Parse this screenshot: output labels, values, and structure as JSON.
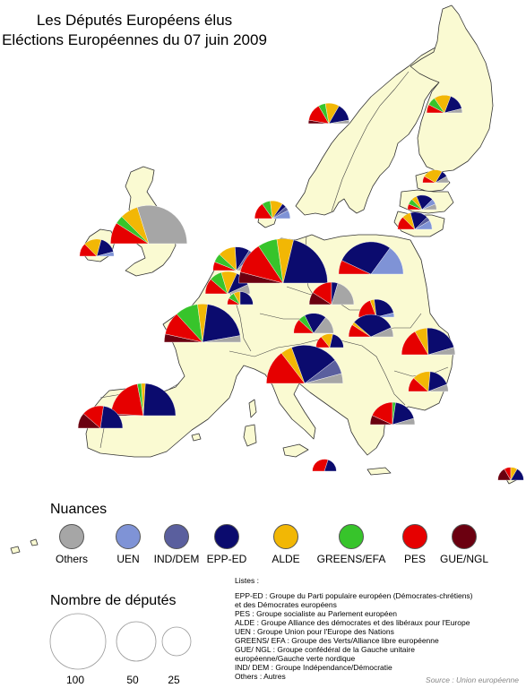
{
  "title_line1": "Les Députés Européens élus",
  "title_line2": "Eléctions Européennes du 07 juin 2009",
  "legend": {
    "heading": "Nuances",
    "items": [
      {
        "key": "others",
        "label": "Others",
        "color": "#a6a6a6"
      },
      {
        "key": "uen",
        "label": "UEN",
        "color": "#7f93d6"
      },
      {
        "key": "ind-dem",
        "label": "IND/DEM",
        "color": "#5a5f9e"
      },
      {
        "key": "epp-ed",
        "label": "EPP-ED",
        "color": "#0b0b6e"
      },
      {
        "key": "alde",
        "label": "ALDE",
        "color": "#f2b705"
      },
      {
        "key": "greens-efa",
        "label": "GREENS/EFA",
        "color": "#37c42b"
      },
      {
        "key": "pes",
        "label": "PES",
        "color": "#e60000"
      },
      {
        "key": "gue-ngl",
        "label": "GUE/NGL",
        "color": "#6b0010"
      }
    ]
  },
  "size_legend": {
    "heading": "Nombre de députés",
    "items": [
      {
        "label": "100",
        "seats": 100
      },
      {
        "label": "50",
        "seats": 50
      },
      {
        "label": "25",
        "seats": 25
      }
    ]
  },
  "lists": {
    "title": "Listes :",
    "lines": [
      "EPP-ED : Groupe du Parti populaire européen (Démocrates-chrétiens)",
      "et des Démocrates européens",
      "PES : Groupe socialiste au Parlement européen",
      "ALDE : Groupe Alliance des démocrates et des libéraux pour l'Europe",
      "UEN : Groupe Union pour l'Europe des Nations",
      "GREENS/ EFA : Groupe des Verts/Alliance libre européenne",
      "GUE/ NGL : Groupe confédéral de la Gauche unitaire",
      "européenne/Gauche verte nordique",
      "IND/ DEM : Groupe Indépendance/Démocratie",
      "Others : Autres"
    ]
  },
  "source": "Source : Union européenne",
  "countries": [
    {
      "id": "finland",
      "seats": 13,
      "shares": {
        "epp-ed": 4,
        "alde": 4,
        "greens-efa": 2,
        "pes": 2,
        "others": 1
      }
    },
    {
      "id": "sweden",
      "seats": 18,
      "shares": {
        "epp-ed": 5,
        "alde": 4,
        "greens-efa": 2,
        "pes": 5,
        "gue-ngl": 1,
        "others": 1
      }
    },
    {
      "id": "estonia",
      "seats": 6,
      "shares": {
        "epp-ed": 1,
        "alde": 3,
        "pes": 1,
        "others": 1
      }
    },
    {
      "id": "latvia",
      "seats": 8,
      "shares": {
        "epp-ed": 3,
        "uen": 1,
        "alde": 1,
        "pes": 1,
        "greens-efa": 1,
        "others": 1
      }
    },
    {
      "id": "lithuania",
      "seats": 12,
      "shares": {
        "epp-ed": 4,
        "pes": 3,
        "alde": 2,
        "uen": 2,
        "ind-dem": 1
      }
    },
    {
      "id": "denmark",
      "seats": 13,
      "shares": {
        "epp-ed": 1,
        "pes": 4,
        "alde": 3,
        "greens-efa": 2,
        "uen": 2,
        "ind-dem": 1
      }
    },
    {
      "id": "ireland",
      "seats": 12,
      "shares": {
        "epp-ed": 4,
        "alde": 4,
        "pes": 3,
        "uen": 1
      }
    },
    {
      "id": "uk",
      "seats": 72,
      "shares": {
        "pes": 13,
        "greens-efa": 5,
        "alde": 11,
        "epp-ed": 0,
        "others": 43
      }
    },
    {
      "id": "netherlands",
      "seats": 25,
      "shares": {
        "epp-ed": 5,
        "pes": 3,
        "alde": 6,
        "greens-efa": 3,
        "ind-dem": 2,
        "others": 6
      }
    },
    {
      "id": "belgium",
      "seats": 22,
      "shares": {
        "epp-ed": 5,
        "pes": 5,
        "alde": 5,
        "greens-efa": 4,
        "others": 3
      }
    },
    {
      "id": "luxembourg",
      "seats": 6,
      "shares": {
        "epp-ed": 3,
        "pes": 1,
        "alde": 1,
        "greens-efa": 1
      }
    },
    {
      "id": "germany",
      "seats": 99,
      "shares": {
        "gue-ngl": 8,
        "pes": 23,
        "greens-efa": 14,
        "alde": 12,
        "epp-ed": 42
      }
    },
    {
      "id": "poland",
      "seats": 50,
      "shares": {
        "pes": 7,
        "epp-ed": 28,
        "uen": 15
      }
    },
    {
      "id": "czech",
      "seats": 22,
      "shares": {
        "gue-ngl": 4,
        "pes": 7,
        "epp-ed": 2,
        "others": 9
      }
    },
    {
      "id": "slovakia",
      "seats": 13,
      "shares": {
        "pes": 5,
        "epp-ed": 6,
        "alde": 1,
        "uen": 1
      }
    },
    {
      "id": "austria",
      "seats": 17,
      "shares": {
        "pes": 4,
        "greens-efa": 2,
        "epp-ed": 6,
        "others": 5
      }
    },
    {
      "id": "hungary",
      "seats": 22,
      "shares": {
        "pes": 4,
        "epp-ed": 14,
        "alde": 1,
        "others": 3
      }
    },
    {
      "id": "slovenia",
      "seats": 7,
      "shares": {
        "pes": 2,
        "alde": 2,
        "epp-ed": 3
      }
    },
    {
      "id": "romania",
      "seats": 33,
      "shares": {
        "pes": 11,
        "epp-ed": 14,
        "alde": 5,
        "others": 3
      }
    },
    {
      "id": "bulgaria",
      "seats": 17,
      "shares": {
        "pes": 4,
        "alde": 5,
        "epp-ed": 6,
        "others": 2
      }
    },
    {
      "id": "france",
      "seats": 72,
      "shares": {
        "gue-ngl": 5,
        "pes": 14,
        "greens-efa": 14,
        "alde": 6,
        "epp-ed": 29,
        "others": 4
      }
    },
    {
      "id": "italy",
      "seats": 72,
      "shares": {
        "pes": 21,
        "alde": 7,
        "epp-ed": 29,
        "ind-dem": 9,
        "others": 6
      }
    },
    {
      "id": "spain",
      "seats": 50,
      "shares": {
        "gue-ngl": 1,
        "pes": 21,
        "greens-efa": 2,
        "alde": 2,
        "epp-ed": 24
      }
    },
    {
      "id": "portugal",
      "seats": 22,
      "shares": {
        "gue-ngl": 5,
        "pes": 7,
        "alde": 0,
        "epp-ed": 10
      }
    },
    {
      "id": "greece",
      "seats": 22,
      "shares": {
        "gue-ngl": 3,
        "pes": 8,
        "greens-efa": 1,
        "epp-ed": 8,
        "others": 2
      }
    },
    {
      "id": "malta",
      "seats": 5,
      "shares": {
        "pes": 3,
        "epp-ed": 2
      }
    },
    {
      "id": "cyprus",
      "seats": 6,
      "shares": {
        "gue-ngl": 2,
        "pes": 1,
        "alde": 1,
        "epp-ed": 2
      }
    }
  ]
}
